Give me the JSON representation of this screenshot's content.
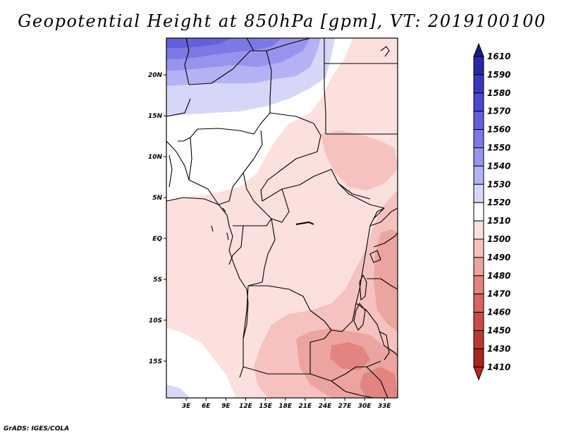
{
  "title": "Geopotential Height at 850hPa [gpm], VT: 2019100100",
  "credit": "GrADS: IGES/COLA",
  "map": {
    "lat_range": [
      -19.5,
      24.5
    ],
    "lon_range": [
      0,
      35
    ],
    "lat_labels": [
      {
        "lat": 20,
        "label": "20N"
      },
      {
        "lat": 15,
        "label": "15N"
      },
      {
        "lat": 10,
        "label": "10N"
      },
      {
        "lat": 5,
        "label": "5N"
      },
      {
        "lat": 0,
        "label": "EQ"
      },
      {
        "lat": -5,
        "label": "5S"
      },
      {
        "lat": -10,
        "label": "10S"
      },
      {
        "lat": -15,
        "label": "15S"
      }
    ],
    "lon_labels": [
      {
        "lon": 3,
        "label": "3E"
      },
      {
        "lon": 6,
        "label": "6E"
      },
      {
        "lon": 9,
        "label": "9E"
      },
      {
        "lon": 12,
        "label": "12E"
      },
      {
        "lon": 15,
        "label": "15E"
      },
      {
        "lon": 18,
        "label": "18E"
      },
      {
        "lon": 21,
        "label": "21E"
      },
      {
        "lon": 24,
        "label": "24E"
      },
      {
        "lon": 27,
        "label": "27E"
      },
      {
        "lon": 30,
        "label": "30E"
      },
      {
        "lon": 33,
        "label": "33E"
      }
    ]
  },
  "colorbar": {
    "levels": [
      {
        "label": "1610",
        "color": "#1e1a8c"
      },
      {
        "label": "1590",
        "color": "#2a26a8"
      },
      {
        "label": "1580",
        "color": "#3a36c0"
      },
      {
        "label": "1570",
        "color": "#4c48d2"
      },
      {
        "label": "1560",
        "color": "#6460dc"
      },
      {
        "label": "1550",
        "color": "#7c78e6"
      },
      {
        "label": "1540",
        "color": "#9894ee"
      },
      {
        "label": "1530",
        "color": "#b4b2f4"
      },
      {
        "label": "1520",
        "color": "#d6d6f8"
      },
      {
        "label": "1510",
        "color": "#ffffff"
      },
      {
        "label": "1500",
        "color": "#fbe0de"
      },
      {
        "label": "1490",
        "color": "#f5c2bf"
      },
      {
        "label": "1480",
        "color": "#eba4a0"
      },
      {
        "label": "1470",
        "color": "#e28480"
      },
      {
        "label": "1460",
        "color": "#d86460"
      },
      {
        "label": "1450",
        "color": "#cc4a46"
      },
      {
        "label": "1430",
        "color": "#bc3834"
      },
      {
        "label": "1410",
        "color": "#a8241f"
      }
    ],
    "bottom_color": "#b02a24"
  }
}
